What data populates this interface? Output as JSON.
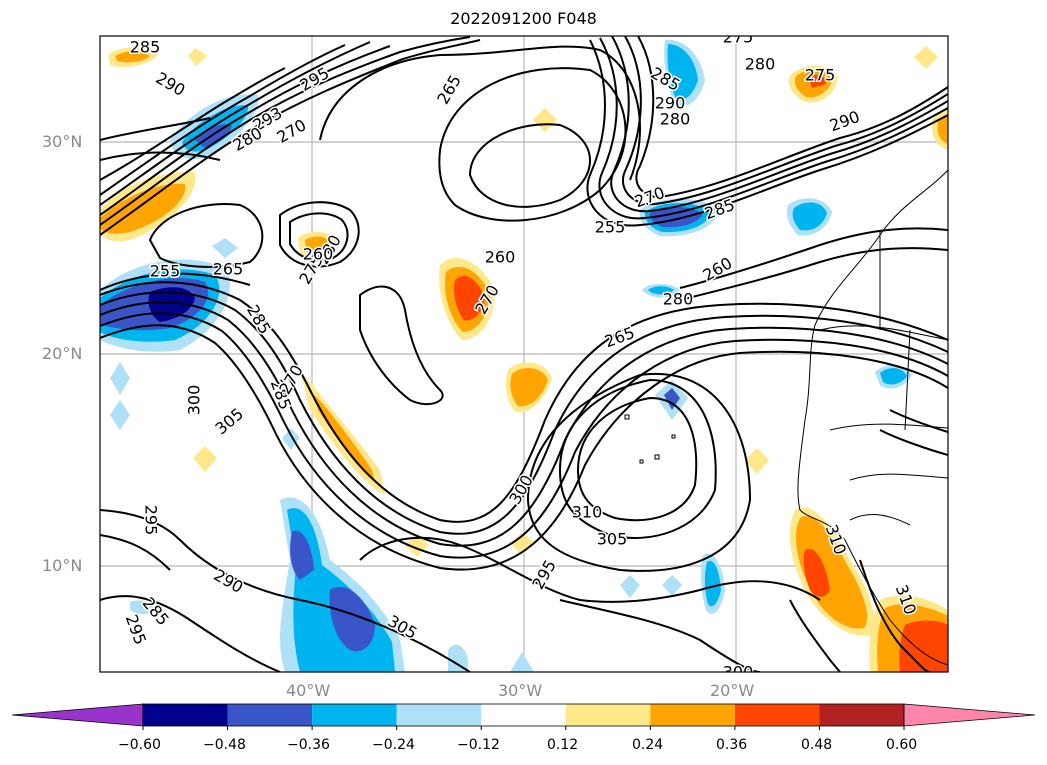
{
  "title": "2022091200 F048",
  "map": {
    "lat_ticks": [
      "30°N",
      "20°N",
      "10°N"
    ],
    "lon_ticks": [
      "40°W",
      "30°W",
      "20°W"
    ],
    "contour_labels": [
      "285",
      "290",
      "295",
      "293",
      "280",
      "270",
      "265",
      "260",
      "255",
      "265",
      "285",
      "275",
      "280",
      "275",
      "290",
      "285",
      "290",
      "280",
      "270",
      "285",
      "255",
      "260",
      "280",
      "265",
      "270",
      "275",
      "280",
      "260",
      "285",
      "300",
      "305",
      "295",
      "290",
      "285",
      "295",
      "305",
      "300",
      "310",
      "305",
      "295",
      "300",
      "310",
      "310",
      "270"
    ]
  },
  "colorbar": {
    "tick_labels": [
      "−0.60",
      "−0.48",
      "−0.36",
      "−0.24",
      "−0.12",
      "0.12",
      "0.24",
      "0.36",
      "0.48",
      "0.60"
    ],
    "colors": [
      "#9933cc",
      "#00008b",
      "#3a55c8",
      "#00b4f0",
      "#aee0f8",
      "#ffffff",
      "#ffe88a",
      "#ffa400",
      "#ff4500",
      "#b22222",
      "#ff85aa"
    ]
  }
}
